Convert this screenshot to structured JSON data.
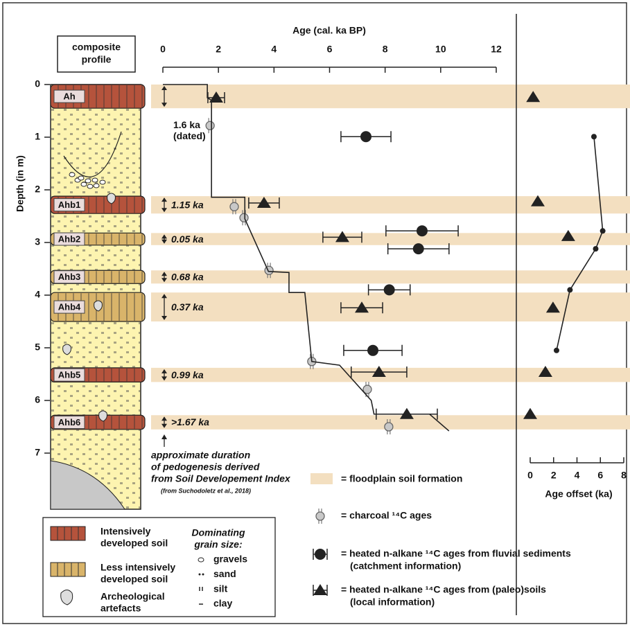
{
  "chart_data": [
    {
      "type": "scatter",
      "x_label": "Age (cal. ka BP)",
      "y_label": "Depth (in m)",
      "xlim": [
        0,
        12
      ],
      "xticks": [
        0,
        2,
        4,
        6,
        8,
        10,
        12
      ],
      "ylim": [
        0,
        7
      ],
      "yticks": [
        0,
        1,
        2,
        3,
        4,
        5,
        6,
        7
      ],
      "y_inverted": true,
      "band_label": "= floodplain soil formation",
      "band_color": "#f3dfc0",
      "bands": [
        {
          "top": 0,
          "bottom": 0.45,
          "duration": "1.6 ka",
          "duration_note": "(dated)"
        },
        {
          "top": 2.12,
          "bottom": 2.45,
          "duration": "1.15 ka"
        },
        {
          "top": 2.82,
          "bottom": 3.05,
          "duration": "0.05 ka"
        },
        {
          "top": 3.53,
          "bottom": 3.78,
          "duration": "0.68 ka"
        },
        {
          "top": 3.95,
          "bottom": 4.5,
          "duration": "0.37 ka"
        },
        {
          "top": 5.38,
          "bottom": 5.65,
          "duration": "0.99 ka"
        },
        {
          "top": 6.28,
          "bottom": 6.55,
          "duration": ">1.67 ka"
        }
      ],
      "series": [
        {
          "name": "= charcoal ¹⁴C ages",
          "marker": "charcoal",
          "color": "#c8c8c8",
          "x": [
            1.7,
            2.57,
            2.92,
            3.82,
            5.36,
            7.36,
            8.13
          ],
          "values": [
            0.78,
            2.32,
            2.53,
            3.53,
            5.26,
            5.79,
            6.5
          ]
        },
        {
          "name": "= heated n-alkane ¹⁴C ages from fluvial sediments",
          "detail": "(catchment information)",
          "marker": "circle",
          "color": "#222222",
          "x": [
            7.31,
            9.33,
            9.2,
            8.15,
            7.56
          ],
          "values": [
            0.99,
            2.78,
            3.12,
            3.9,
            5.05
          ],
          "xerr": [
            0.9,
            1.3,
            1.1,
            0.75,
            1.05
          ]
        },
        {
          "name": "= heated n-alkane ¹⁴C ages from (paleo)soils",
          "detail": "(local information)",
          "marker": "triangle",
          "color": "#222222",
          "x": [
            1.92,
            3.64,
            6.46,
            7.16,
            7.78,
            8.78
          ],
          "values": [
            0.25,
            2.25,
            2.9,
            4.24,
            5.46,
            6.26
          ],
          "xerr": [
            0.3,
            0.55,
            0.7,
            0.75,
            1.0,
            1.1
          ]
        },
        {
          "marker": "line",
          "color": "#222222",
          "x": [
            0,
            1.6,
            1.6,
            1.75,
            1.75,
            2.95,
            2.95,
            3.8,
            4.54,
            4.54,
            5.11,
            5.36,
            6.36,
            7.5,
            7.6,
            9.6,
            10.3
          ],
          "values": [
            0,
            0,
            0.25,
            0.3,
            2.14,
            2.14,
            2.55,
            3.55,
            3.57,
            3.95,
            3.95,
            5.26,
            5.33,
            6.0,
            6.26,
            6.26,
            6.58
          ]
        }
      ]
    },
    {
      "type": "scatter",
      "x_label": "Age offset (ka)",
      "xlim": [
        0,
        8
      ],
      "xticks": [
        0,
        2,
        4,
        6,
        8
      ],
      "ylim": [
        0,
        7
      ],
      "y_inverted": true,
      "series": [
        {
          "marker": "circle-line",
          "color": "#222222",
          "x": [
            5.45,
            6.2,
            5.6,
            3.4,
            2.25
          ],
          "values": [
            0.99,
            2.78,
            3.12,
            3.9,
            5.05
          ]
        },
        {
          "marker": "triangle",
          "color": "#222222",
          "x": [
            0.25,
            0.65,
            3.25,
            1.95,
            1.3,
            0
          ],
          "values": [
            0.24,
            2.22,
            2.88,
            4.24,
            5.46,
            6.26
          ]
        }
      ]
    }
  ],
  "profile": {
    "title": [
      "composite",
      "profile"
    ],
    "layers": [
      {
        "label": "Ah",
        "kind": 0
      },
      {
        "label": "Ahb1",
        "kind": 0
      },
      {
        "label": "Ahb2",
        "kind": 1
      },
      {
        "label": "Ahb3",
        "kind": 1
      },
      {
        "label": "Ahb4",
        "kind": 1
      },
      {
        "label": "Ahb5",
        "kind": 0
      },
      {
        "label": "Ahb6",
        "kind": 0
      }
    ]
  },
  "note": {
    "lines": [
      "approximate duration",
      "of pedogenesis derived",
      "from Soil Developement Index"
    ],
    "source": "(from Suchodoletz et al., 2018)"
  },
  "legend": {
    "soils": [
      {
        "lines": [
          "Intensively",
          "developed soil"
        ],
        "color": "#b5533c"
      },
      {
        "lines": [
          "Less intensively",
          "developed soil"
        ],
        "color": "#d9b46a"
      }
    ],
    "artefact": [
      "Archeological",
      "artefacts"
    ],
    "grain_title": [
      "Dominating",
      "grain size:"
    ],
    "grains": [
      "gravels",
      "sand",
      "silt",
      "clay"
    ]
  }
}
